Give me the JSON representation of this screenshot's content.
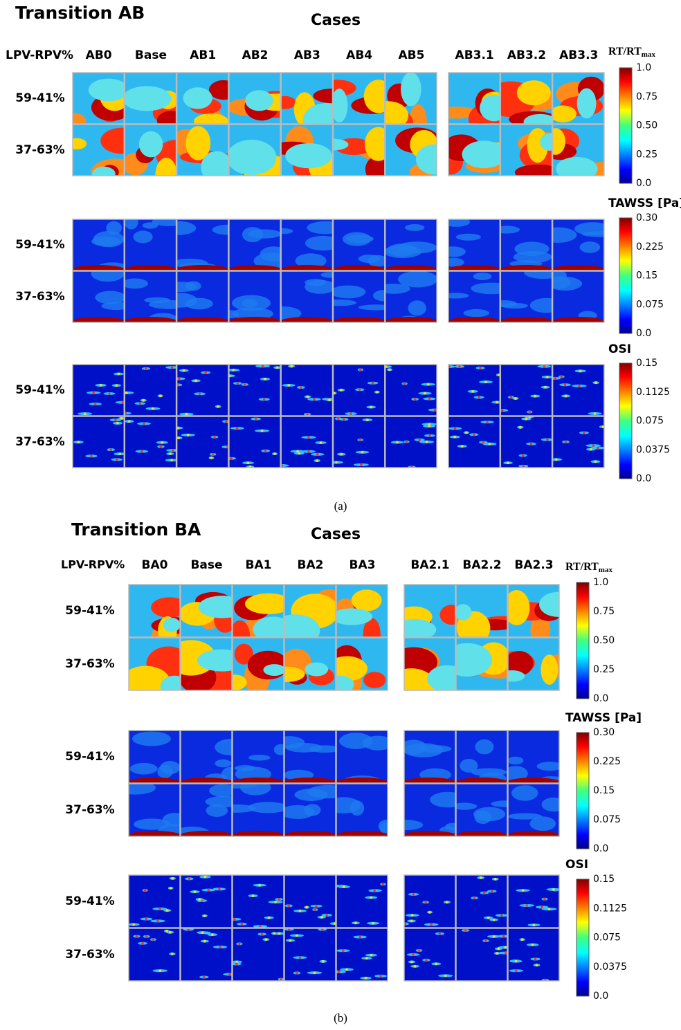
{
  "figure": {
    "parts": [
      {
        "title": "Transition AB",
        "cases_label": "Cases",
        "row_header": "LPV-RPV%",
        "columns": [
          "AB0",
          "Base",
          "AB1",
          "AB2",
          "AB3",
          "AB4",
          "AB5",
          "AB3.1",
          "AB3.2",
          "AB3.3"
        ],
        "rows": [
          "59-41%",
          "37-63%"
        ],
        "colorbars": [
          {
            "label": "RT/RT",
            "label_sub": "max",
            "ticks": [
              "1.0",
              "0.75",
              "0.50",
              "0.25",
              "0.0"
            ]
          },
          {
            "label": "TAWSS [Pa]",
            "ticks": [
              "0.30",
              "0.225",
              "0.15",
              "0.075",
              "0.0"
            ]
          },
          {
            "label": "OSI",
            "ticks": [
              "0.15",
              "0.1125",
              "0.075",
              "0.0375",
              "0.0"
            ]
          }
        ],
        "caption": "(a)"
      },
      {
        "title": "Transition BA",
        "cases_label": "Cases",
        "row_header": "LPV-RPV%",
        "columns": [
          "BA0",
          "Base",
          "BA1",
          "BA2",
          "BA3",
          "BA2.1",
          "BA2.2",
          "BA2.3"
        ],
        "rows": [
          "59-41%",
          "37-63%"
        ],
        "colorbars": [
          {
            "label": "RT/RT",
            "label_sub": "max",
            "ticks": [
              "1.0",
              "0.75",
              "0.50",
              "0.25",
              "0.0"
            ]
          },
          {
            "label": "TAWSS [Pa]",
            "ticks": [
              "0.30",
              "0.225",
              "0.15",
              "0.075",
              "0.0"
            ]
          },
          {
            "label": "OSI",
            "ticks": [
              "0.15",
              "0.1125",
              "0.075",
              "0.0375",
              "0.0"
            ]
          }
        ],
        "caption": "(b)"
      }
    ]
  }
}
